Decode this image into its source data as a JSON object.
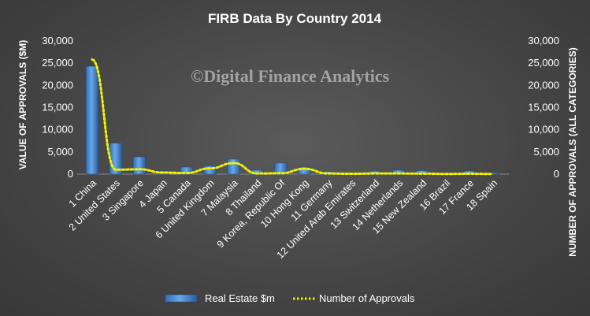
{
  "chart_data": {
    "type": "bar",
    "title": "FIRB Data  By Country  2014",
    "watermark": "©Digital Finance Analytics",
    "ylabel": "VALUE OF APPROVALS ($M)",
    "y2label": "NUMBER OF APPROVALS (ALL CATEGORIES)",
    "ylim": [
      0,
      30000
    ],
    "y2lim": [
      0,
      30000
    ],
    "yticks": [
      "0",
      "5,000",
      "10,000",
      "15,000",
      "20,000",
      "25,000",
      "30,000"
    ],
    "y2ticks": [
      "0",
      "5,000",
      "10,000",
      "15,000",
      "20,000",
      "25,000",
      "30,000"
    ],
    "categories": [
      "1 China",
      "2 United States",
      "3 Singapore",
      "4 Japan",
      "5 Canada",
      "6 United Kingdom",
      "7 Malaysia",
      "8 Thailand",
      "9 Korea, Republic Of",
      "10 Hong Kong",
      "11 Germany",
      "12 United Arab Emirates",
      "13 Switzerland",
      "14 Netherlands",
      "15 New Zealand",
      "16 Brazil",
      "17 France",
      "18 Spain"
    ],
    "series": [
      {
        "name": "Real Estate $m",
        "type": "bar",
        "axis": "left",
        "color": "#4f8fd6",
        "values": [
          24300,
          7000,
          3900,
          700,
          1600,
          1800,
          3400,
          900,
          2500,
          1600,
          600,
          250,
          700,
          900,
          800,
          150,
          700,
          250
        ]
      },
      {
        "name": "Number of Approvals",
        "type": "line",
        "axis": "right",
        "color": "#f2f200",
        "values": [
          25800,
          1000,
          1100,
          350,
          250,
          1300,
          2500,
          150,
          200,
          1200,
          150,
          80,
          150,
          150,
          120,
          50,
          80,
          40
        ]
      }
    ],
    "legend": [
      "Real Estate $m",
      "Number of Approvals"
    ],
    "legend_position": "bottom",
    "grid": false
  }
}
